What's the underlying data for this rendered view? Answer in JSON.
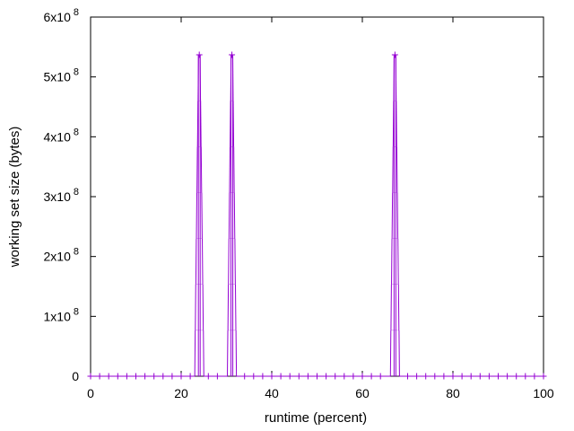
{
  "chart_data": {
    "type": "line",
    "title": "",
    "xlabel": "runtime (percent)",
    "ylabel": "working set size (bytes)",
    "xlim": [
      0,
      100
    ],
    "ylim": [
      0,
      600000000
    ],
    "x_ticks": [
      0,
      20,
      40,
      60,
      80,
      100
    ],
    "x_tick_labels": [
      "0",
      "20",
      "40",
      "60",
      "80",
      "100"
    ],
    "y_ticks": [
      0,
      100000000,
      200000000,
      300000000,
      400000000,
      500000000,
      600000000
    ],
    "y_tick_labels": [
      {
        "mant": "0",
        "exp": ""
      },
      {
        "mant": "1x10",
        "exp": "8"
      },
      {
        "mant": "2x10",
        "exp": "8"
      },
      {
        "mant": "3x10",
        "exp": "8"
      },
      {
        "mant": "4x10",
        "exp": "8"
      },
      {
        "mant": "5x10",
        "exp": "8"
      },
      {
        "mant": "6x10",
        "exp": "8"
      }
    ],
    "grid": false,
    "legend": "none",
    "series": [
      {
        "color": "#9400d3",
        "marker": "plus",
        "peaks": [
          {
            "x_start": 23.0,
            "x_end": 25.0,
            "x_peak": 24.0,
            "y_peak": 537000000
          },
          {
            "x_start": 30.2,
            "x_end": 32.2,
            "x_peak": 31.2,
            "y_peak": 537000000
          },
          {
            "x_start": 66.2,
            "x_end": 68.2,
            "x_peak": 67.2,
            "y_peak": 537000000
          }
        ],
        "baseline": 0
      }
    ]
  }
}
